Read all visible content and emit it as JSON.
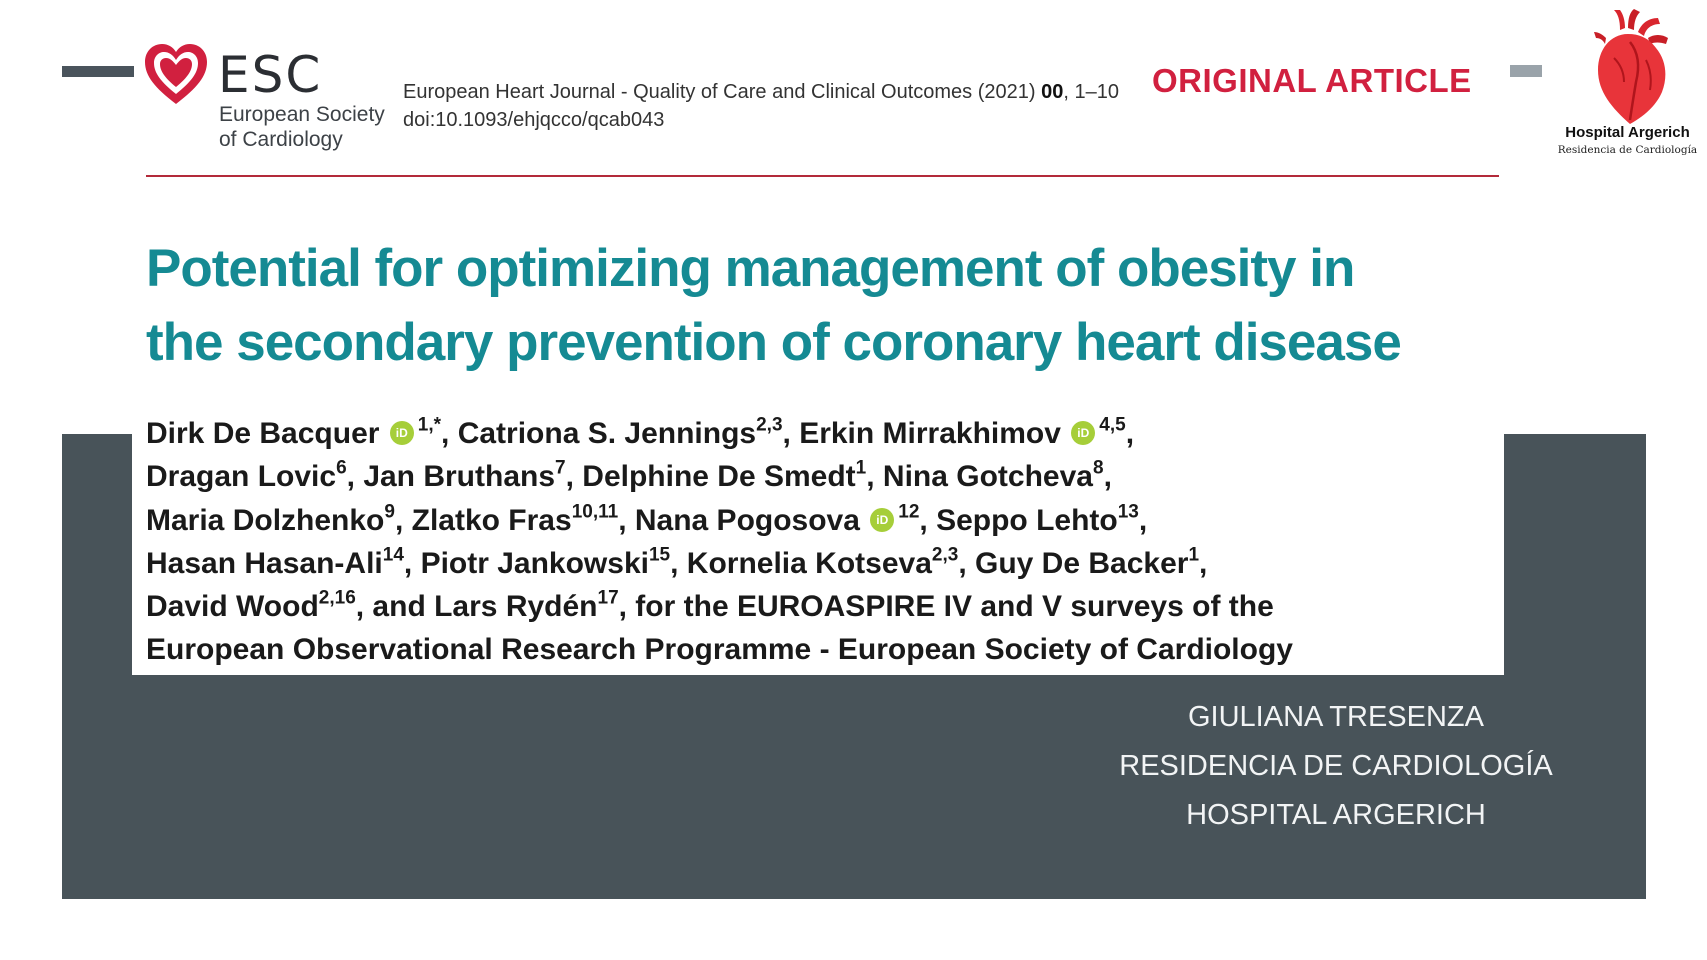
{
  "header": {
    "esc_logo": {
      "wordmark": "ESC",
      "subtitle_line1": "European Society",
      "subtitle_line2": "of Cardiology",
      "icon": "heart-icon",
      "color": "#d1203f"
    },
    "journal_citation": "European Heart Journal - Quality of Care and Clinical Outcomes (2021)",
    "journal_volume": "00",
    "journal_pages": ", 1–10",
    "doi": "doi:10.1093/ehjqcco/qcab043",
    "article_type": "ORIGINAL ARTICLE",
    "hospital_logo": {
      "name": "Hospital Argerich",
      "subtitle": "Residencia de Cardiología",
      "icon": "anatomical-heart-icon",
      "color": "#e8343a"
    }
  },
  "title": {
    "line1": "Potential for optimizing management of obesity in",
    "line2": "the secondary prevention of coronary heart disease"
  },
  "authors": {
    "line1": [
      {
        "name": "Dirk De Bacquer",
        "orcid": true,
        "sup": "1,*",
        "sep": ", "
      },
      {
        "name": "Catriona S. Jennings",
        "orcid": false,
        "sup": "2,3",
        "sep": ", "
      },
      {
        "name": "Erkin Mirrakhimov",
        "orcid": true,
        "sup": "4,5",
        "sep": ","
      }
    ],
    "line2": [
      {
        "name": "Dragan Lovic",
        "orcid": false,
        "sup": "6",
        "sep": ", "
      },
      {
        "name": "Jan Bruthans",
        "orcid": false,
        "sup": "7",
        "sep": ", "
      },
      {
        "name": "Delphine De Smedt",
        "orcid": false,
        "sup": "1",
        "sep": ", "
      },
      {
        "name": "Nina Gotcheva",
        "orcid": false,
        "sup": "8",
        "sep": ","
      }
    ],
    "line3": [
      {
        "name": "Maria Dolzhenko",
        "orcid": false,
        "sup": "9",
        "sep": ", "
      },
      {
        "name": "Zlatko Fras",
        "orcid": false,
        "sup": "10,11",
        "sep": ", "
      },
      {
        "name": "Nana Pogosova",
        "orcid": true,
        "sup": "12",
        "sep": ", "
      },
      {
        "name": "Seppo Lehto",
        "orcid": false,
        "sup": "13",
        "sep": ","
      }
    ],
    "line4": [
      {
        "name": "Hasan Hasan-Ali",
        "orcid": false,
        "sup": "14",
        "sep": ", "
      },
      {
        "name": "Piotr Jankowski",
        "orcid": false,
        "sup": "15",
        "sep": ", "
      },
      {
        "name": "Kornelia Kotseva",
        "orcid": false,
        "sup": "2,3",
        "sep": ", "
      },
      {
        "name": "Guy De Backer",
        "orcid": false,
        "sup": "1",
        "sep": ","
      }
    ],
    "line5": [
      {
        "name": "David Wood",
        "orcid": false,
        "sup": "2,16",
        "sep": ", and "
      },
      {
        "name": "Lars Rydén",
        "orcid": false,
        "sup": "17",
        "sep": ", for the EUROASPIRE IV and V surveys of the"
      }
    ],
    "line6": "European Observational Research Programme - European Society of Cardiology",
    "orcid_label": "iD"
  },
  "presenter": {
    "name": "GIULIANA TRESENZA",
    "program": "RESIDENCIA DE CARDIOLOGÍA",
    "hospital": "HOSPITAL ARGERICH"
  },
  "colors": {
    "title": "#158a93",
    "panel": "#485359",
    "accent_red": "#d1203f",
    "orcid_green": "#a6ce39"
  }
}
